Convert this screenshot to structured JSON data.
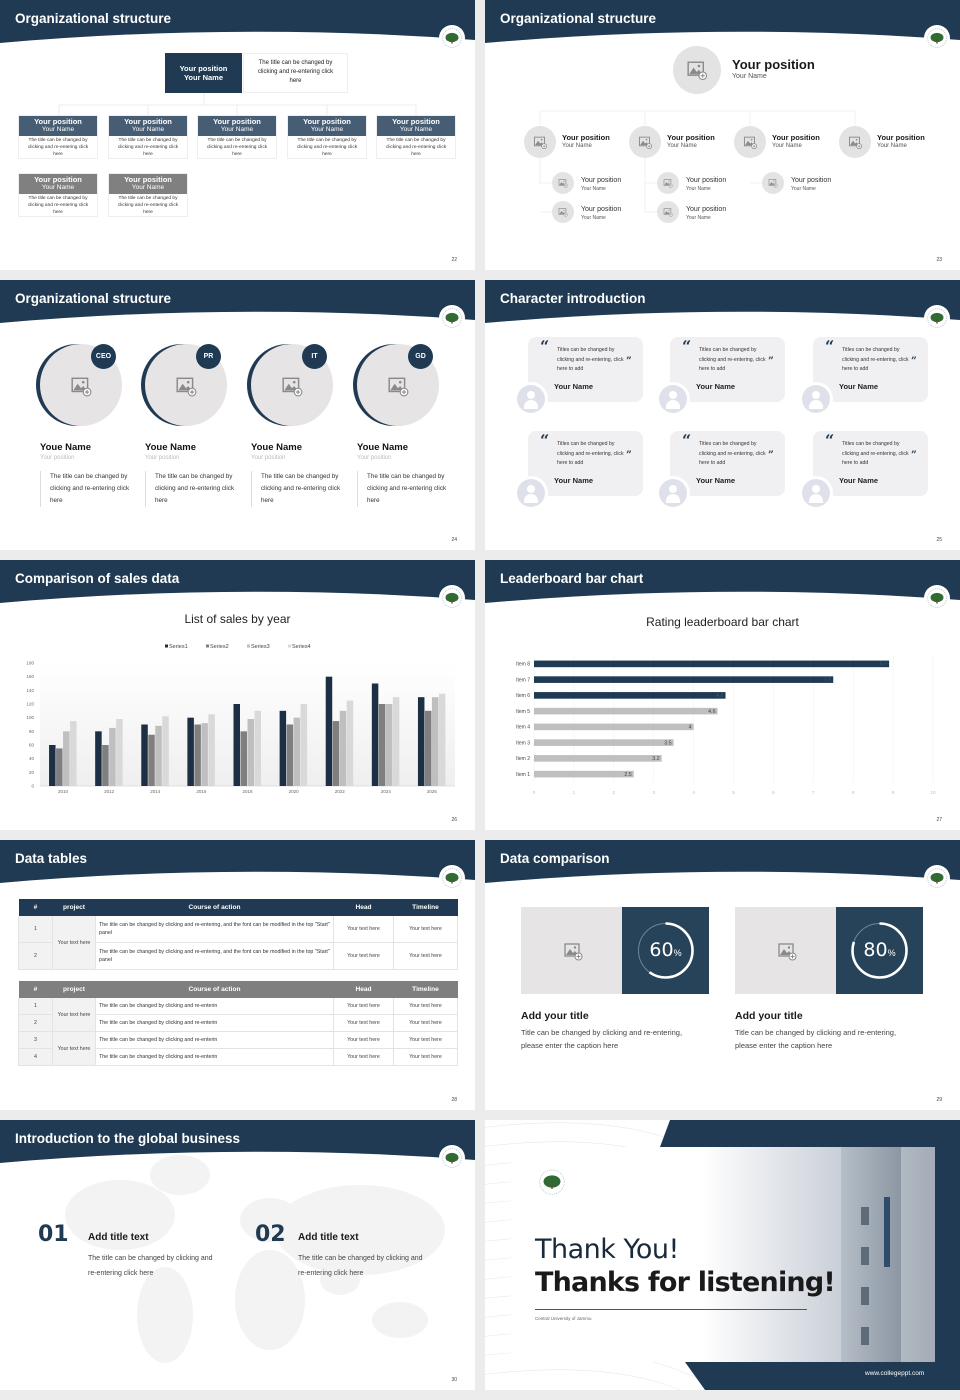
{
  "colors": {
    "navy": "#1f3a52",
    "slate": "#465d74",
    "gray": "#808080",
    "light": "#e6e4e4"
  },
  "s22": {
    "title": "Organizational structure",
    "page": "22",
    "top": {
      "position": "Your position",
      "name": "Your Name",
      "desc": "The title can be changed by clicking and re-entering click here"
    },
    "cards": [
      {
        "position": "Your position",
        "name": "Your Name",
        "desc": "The title can be changed by clicking and re-entering click here"
      },
      {
        "position": "Your position",
        "name": "Your Name",
        "desc": "The title can be changed by clicking and re-entering click here"
      },
      {
        "position": "Your position",
        "name": "Your Name",
        "desc": "The title can be changed by clicking and re-entering click here"
      },
      {
        "position": "Your position",
        "name": "Your Name",
        "desc": "The title can be changed by clicking and re-entering click here"
      },
      {
        "position": "Your position",
        "name": "Your Name",
        "desc": "The title can be changed by clicking and re-entering click here"
      },
      {
        "position": "Your position",
        "name": "Your Name",
        "desc": "The title can be changed by clicking and re-entering click here"
      },
      {
        "position": "Your position",
        "name": "Your Name",
        "desc": "The title can be changed by clicking and re-entering click here"
      }
    ]
  },
  "s23": {
    "title": "Organizational structure",
    "page": "23",
    "top": {
      "position": "Your position",
      "name": "Your Name"
    },
    "level1": [
      {
        "position": "Your position",
        "name": "Your Name"
      },
      {
        "position": "Your position",
        "name": "Your Name"
      },
      {
        "position": "Your position",
        "name": "Your Name"
      },
      {
        "position": "Your position",
        "name": "Your Name"
      }
    ],
    "level2": [
      {
        "position": "Your position",
        "name": "Your Name"
      },
      {
        "position": "Your position",
        "name": "Your Name"
      },
      {
        "position": "Your position",
        "name": "Your Name"
      },
      {
        "position": "Your position",
        "name": "Your Name"
      },
      {
        "position": "Your position",
        "name": "Your Name"
      }
    ]
  },
  "s24": {
    "title": "Organizational structure",
    "page": "24",
    "people": [
      {
        "badge": "CEO",
        "name": "Youe Name",
        "position": "Your position",
        "desc": "The title can be changed by clicking and re-entering click here"
      },
      {
        "badge": "PR",
        "name": "Youe Name",
        "position": "Your position",
        "desc": "The title can be changed by clicking and re-entering click here"
      },
      {
        "badge": "IT",
        "name": "Youe Name",
        "position": "Your position",
        "desc": "The title can be changed by clicking and re-entering click here"
      },
      {
        "badge": "GD",
        "name": "Youe Name",
        "position": "Your position",
        "desc": "The title can be changed by clicking and re-entering click here"
      }
    ]
  },
  "s25": {
    "title": "Character introduction",
    "page": "25",
    "open_quote": "“",
    "close_quote": "”",
    "cards": [
      {
        "text": "Titles can be changed by clicking and re-entering, click here to add",
        "name": "Your Name"
      },
      {
        "text": "Titles can be changed by clicking and re-entering, click here to add",
        "name": "Your Name"
      },
      {
        "text": "Titles can be changed by clicking and re-entering, click here to add",
        "name": "Your Name"
      },
      {
        "text": "Titles can be changed by clicking and re-entering, click here to add",
        "name": "Your Name"
      },
      {
        "text": "Titles can be changed by clicking and re-entering, click here to add",
        "name": "Your Name"
      },
      {
        "text": "Titles can be changed by clicking and re-entering, click here to add",
        "name": "Your Name"
      }
    ]
  },
  "s26": {
    "title": "Comparison of sales data",
    "page": "26"
  },
  "s27": {
    "title": "Leaderboard bar chart",
    "page": "27"
  },
  "chart_data": [
    {
      "type": "bar",
      "title": "List of sales by year",
      "xlabel": "",
      "ylabel": "",
      "categories": [
        "2010",
        "2012",
        "2014",
        "2016",
        "2018",
        "2020",
        "2022",
        "2024",
        "2026"
      ],
      "ylim": [
        0,
        180
      ],
      "yticks": [
        "0",
        "20",
        "40",
        "60",
        "80",
        "100",
        "120",
        "140",
        "160",
        "180"
      ],
      "legend": "top",
      "grid": false,
      "series": [
        {
          "name": "Series1",
          "color": "#1c2f45",
          "values": [
            60,
            80,
            90,
            100,
            120,
            110,
            160,
            150,
            130
          ]
        },
        {
          "name": "Series2",
          "color": "#7f7f7f",
          "values": [
            55,
            60,
            75,
            90,
            80,
            90,
            95,
            120,
            110
          ]
        },
        {
          "name": "Series3",
          "color": "#bfbfbf",
          "values": [
            80,
            85,
            88,
            92,
            98,
            100,
            110,
            120,
            130
          ]
        },
        {
          "name": "Series4",
          "color": "#d9d9d9",
          "values": [
            95,
            98,
            102,
            105,
            110,
            120,
            125,
            130,
            135
          ]
        }
      ]
    },
    {
      "type": "bar",
      "orientation": "horizontal",
      "title": "Rating leaderboard bar chart",
      "xlabel": "",
      "ylabel": "",
      "categories": [
        "Item 1",
        "Item 2",
        "Item 3",
        "Item 4",
        "Item 5",
        "Item 6",
        "Item 7",
        "Item 8"
      ],
      "values": [
        2.5,
        3.2,
        3.5,
        4,
        4.6,
        4.8,
        7.5,
        8.9
      ],
      "data_labels": [
        "2.5",
        "3.2",
        "3.5",
        "4",
        "4.6",
        "4.8",
        "7.5",
        "8.9"
      ],
      "colors": [
        "#bfbfbf",
        "#bfbfbf",
        "#bfbfbf",
        "#bfbfbf",
        "#bfbfbf",
        "#1f3a52",
        "#1f3a52",
        "#1f3a52"
      ],
      "xlim": [
        0,
        10
      ],
      "xticks": [
        "0",
        "1",
        "2",
        "3",
        "4",
        "5",
        "6",
        "7",
        "8",
        "9",
        "10"
      ],
      "grid": true
    }
  ],
  "s28": {
    "title": "Data tables",
    "page": "28",
    "headers": [
      "#",
      "project",
      "Course of action",
      "Head",
      "Timeline"
    ],
    "table1": {
      "project": "Your text here",
      "rows": [
        {
          "num": "1",
          "action": "The title can be changed by clicking and re-entering, and the font can be modified in the top \"Start\" panel",
          "head": "Your text here",
          "timeline": "Your text here"
        },
        {
          "num": "2",
          "action": "The title can be changed by clicking and re-entering, and the font can be modified in the top \"Start\" panel",
          "head": "Your text here",
          "timeline": "Your text here"
        }
      ]
    },
    "table2": {
      "projects": [
        "Your text here",
        "Your text here"
      ],
      "rows": [
        {
          "num": "1",
          "action": "The title can be changed by clicking and re-enterin",
          "head": "Your text here",
          "timeline": "Your text here"
        },
        {
          "num": "2",
          "action": "The title can be changed by clicking and re-enterin",
          "head": "Your text here",
          "timeline": "Your text here"
        },
        {
          "num": "3",
          "action": "The title can be changed by clicking and re-enterin",
          "head": "Your text here",
          "timeline": "Your text here"
        },
        {
          "num": "4",
          "action": "The title can be changed by clicking and re-enterin",
          "head": "Your text here",
          "timeline": "Your text here"
        }
      ]
    }
  },
  "s29": {
    "title": "Data comparison",
    "page": "29",
    "items": [
      {
        "percent": 60,
        "value": "60",
        "unit": "%",
        "heading": "Add your title",
        "desc": "Title can be changed by clicking and re-entering, please enter the caption here"
      },
      {
        "percent": 80,
        "value": "80",
        "unit": "%",
        "heading": "Add your title",
        "desc": "Title can be changed by clicking and re-entering, please enter the caption here"
      }
    ]
  },
  "s30": {
    "title": "Introduction to the global business",
    "page": "30",
    "items": [
      {
        "num": "01",
        "heading": "Add title text",
        "desc": "The title can be changed by clicking and re-entering click here"
      },
      {
        "num": "02",
        "heading": "Add title text",
        "desc": "The title can be changed by clicking and re-entering click here"
      }
    ]
  },
  "s31": {
    "line1": "Thank You!",
    "line2": "Thanks for listening!",
    "university": "Central University of Jammu",
    "url": "www.collegeppt.com"
  }
}
